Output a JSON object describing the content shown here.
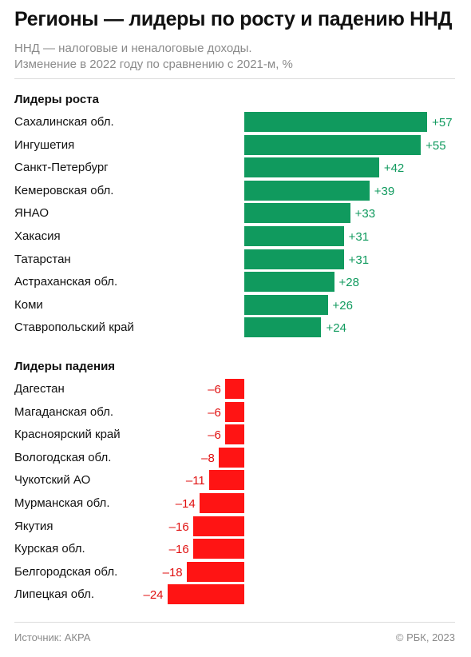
{
  "title": "Регионы — лидеры по росту и падению ННД",
  "subtitle_line1": "ННД — налоговые и неналоговые доходы.",
  "subtitle_line2": "Изменение в 2022 году по сравнению с 2021-м, %",
  "source": "Источник: АКРА",
  "copyright": "© РБК, 2023",
  "colors": {
    "growth": "#109a5e",
    "decline": "#ff1414",
    "decline_text": "#e01010"
  },
  "chart_data": [
    {
      "type": "bar",
      "title": "Лидеры роста",
      "categories": [
        "Сахалинская обл.",
        "Ингушетия",
        "Санкт-Петербург",
        "Кемеровская обл.",
        "ЯНАО",
        "Хакасия",
        "Татарстан",
        "Астраханская обл.",
        "Коми",
        "Ставропольский край"
      ],
      "values": [
        57,
        55,
        42,
        39,
        33,
        31,
        31,
        28,
        26,
        24
      ],
      "value_labels": [
        "+57",
        "+55",
        "+42",
        "+39",
        "+33",
        "+31",
        "+31",
        "+28",
        "+26",
        "+24"
      ]
    },
    {
      "type": "bar",
      "title": "Лидеры падения",
      "categories": [
        "Дагестан",
        "Магаданская обл.",
        "Красноярский край",
        "Вологодская обл.",
        "Чукотский АО",
        "Мурманская обл.",
        "Якутия",
        "Курская обл.",
        "Белгородская обл.",
        "Липецкая обл."
      ],
      "values": [
        -6,
        -6,
        -6,
        -8,
        -11,
        -14,
        -16,
        -16,
        -18,
        -24
      ],
      "value_labels": [
        "–6",
        "–6",
        "–6",
        "–8",
        "–11",
        "–14",
        "–16",
        "–16",
        "–18",
        "–24"
      ]
    }
  ]
}
